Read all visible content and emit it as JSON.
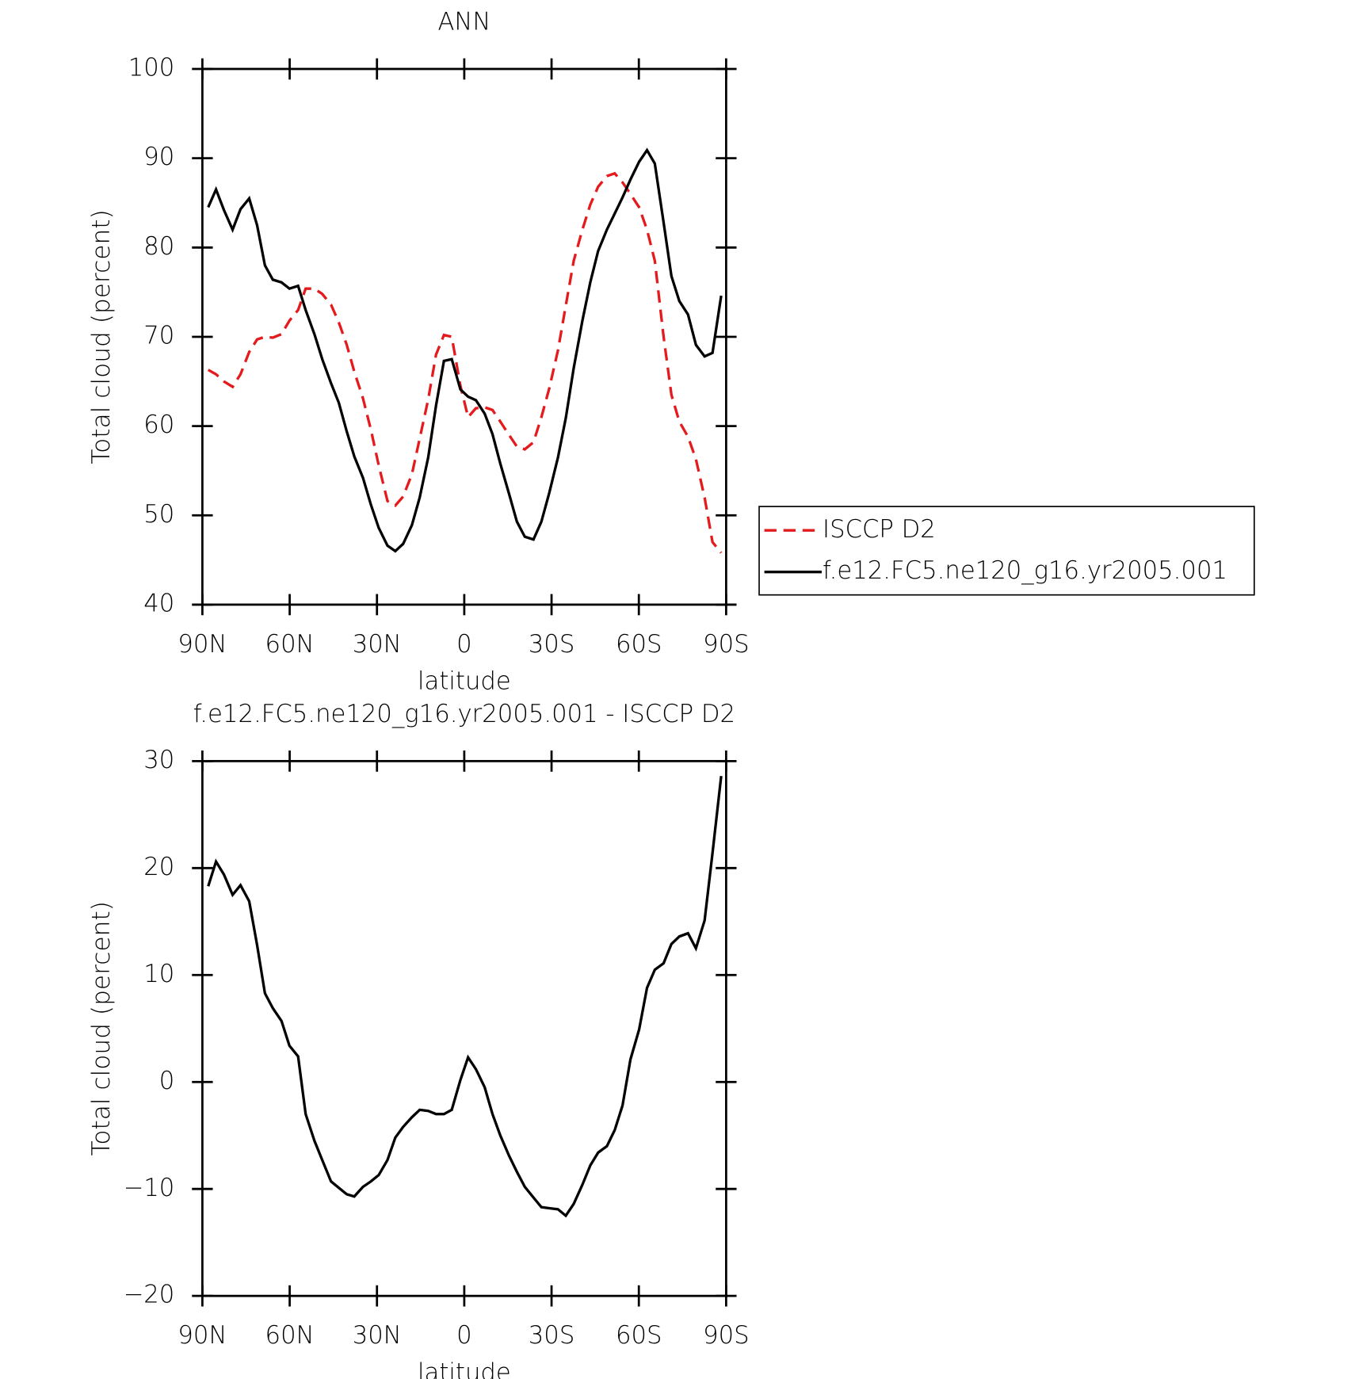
{
  "chart_data": [
    {
      "type": "line",
      "title": "ANN",
      "x_label": "latitude",
      "y_label": "Total cloud (percent)",
      "xlim": [
        90,
        -90
      ],
      "ylim": [
        40,
        100
      ],
      "xticks": [
        {
          "value": 90,
          "label": "90N"
        },
        {
          "value": 60,
          "label": "60N"
        },
        {
          "value": 30,
          "label": "30N"
        },
        0,
        {
          "value": -30,
          "label": "30S"
        },
        {
          "value": -60,
          "label": "60S"
        },
        {
          "value": -90,
          "label": "90S"
        }
      ],
      "yticks": [
        40,
        50,
        60,
        70,
        80,
        90,
        100
      ],
      "legend": "right",
      "x": [
        88,
        85.3,
        82.6,
        79.6,
        76.9,
        73.9,
        71.2,
        68.5,
        65.8,
        62.8,
        60.1,
        57.1,
        54.5,
        51.5,
        48.8,
        45.8,
        43.1,
        40.4,
        37.8,
        34.8,
        32.1,
        29.4,
        26.4,
        23.7,
        21,
        18,
        15.3,
        12.4,
        9.7,
        7,
        4.3,
        1.3,
        -1.3,
        -4,
        -7,
        -9.7,
        -12.4,
        -15.4,
        -18.1,
        -20.8,
        -23.8,
        -26.5,
        -29.2,
        -32.2,
        -34.9,
        -37.6,
        -40.6,
        -43.3,
        -46,
        -49,
        -51.7,
        -54.4,
        -57.1,
        -60.1,
        -62.8,
        -65.5,
        -68.5,
        -71.2,
        -73.9,
        -76.9,
        -79.6,
        -82.6,
        -85.3,
        -88.3
      ],
      "series": [
        {
          "name": "ISCCP D2",
          "color": "#e41a1c",
          "style": "dashed",
          "values": [
            66.3,
            65.8,
            65,
            64.4,
            65.8,
            68.3,
            69.7,
            70,
            69.9,
            70.3,
            71.8,
            73,
            75.4,
            75.4,
            74.8,
            73.6,
            71.6,
            69.1,
            66.1,
            63.1,
            59.6,
            55.6,
            51.6,
            51.1,
            52.1,
            54.6,
            58.6,
            63,
            68,
            70.2,
            70,
            64.5,
            61,
            62,
            62.1,
            61.8,
            60.5,
            59,
            57.7,
            57.4,
            58.2,
            61,
            64.2,
            68.5,
            73.5,
            78.5,
            82,
            84.8,
            86.8,
            88,
            88.3,
            87.3,
            86,
            84.5,
            82,
            78.5,
            70,
            63.5,
            60.5,
            58.8,
            56.3,
            52,
            47,
            45.8
          ]
        },
        {
          "name": "f.e12.FC5.ne120_g16.yr2005.001",
          "color": "#000000",
          "style": "solid",
          "values": [
            84.5,
            86.5,
            84.2,
            82,
            84.3,
            85.5,
            82.5,
            78,
            76.4,
            76.1,
            75.4,
            75.7,
            73,
            70.3,
            67.5,
            64.8,
            62.6,
            59.4,
            56.6,
            54.2,
            51.2,
            48.6,
            46.6,
            46,
            46.8,
            48.9,
            52,
            56.5,
            62.3,
            67.3,
            67.5,
            64.1,
            63.3,
            62.9,
            61.4,
            59.1,
            55.8,
            52.4,
            49.3,
            47.6,
            47.3,
            49.3,
            52.5,
            56.5,
            60.9,
            66.5,
            71.8,
            76.1,
            79.6,
            82,
            83.8,
            85.6,
            87.6,
            89.6,
            90.9,
            89.4,
            82.8,
            76.8,
            74,
            72.5,
            69.1,
            67.8,
            68.2,
            74.6
          ]
        }
      ]
    },
    {
      "type": "line",
      "title": "f.e12.FC5.ne120_g16.yr2005.001 - ISCCP D2",
      "x_label": "latitude",
      "y_label": "Total cloud (percent)",
      "xlim": [
        90,
        -90
      ],
      "ylim": [
        -20,
        30
      ],
      "xticks": [
        {
          "value": 90,
          "label": "90N"
        },
        {
          "value": 60,
          "label": "60N"
        },
        {
          "value": 30,
          "label": "30N"
        },
        0,
        {
          "value": -30,
          "label": "30S"
        },
        {
          "value": -60,
          "label": "60S"
        },
        {
          "value": -90,
          "label": "90S"
        }
      ],
      "yticks": [
        {
          "value": -20,
          "label": "−20"
        },
        {
          "value": -10,
          "label": "−10"
        },
        0,
        10,
        20,
        30
      ],
      "x": [
        88,
        85.3,
        82.6,
        79.6,
        76.9,
        73.9,
        71.2,
        68.5,
        65.8,
        62.8,
        60.1,
        57.1,
        54.5,
        51.5,
        48.8,
        45.8,
        43.1,
        40.4,
        37.8,
        34.8,
        32.1,
        29.4,
        26.4,
        23.7,
        21,
        18,
        15.3,
        12.4,
        9.7,
        7,
        4.3,
        1.3,
        -1.3,
        -4,
        -7,
        -9.7,
        -12.4,
        -15.4,
        -18.1,
        -20.8,
        -23.8,
        -26.5,
        -29.2,
        -32.2,
        -34.9,
        -37.6,
        -40.6,
        -43.3,
        -46,
        -49,
        -51.7,
        -54.4,
        -57.1,
        -60.1,
        -62.8,
        -65.5,
        -68.5,
        -71.2,
        -73.9,
        -76.9,
        -79.6,
        -82.6,
        -85.3,
        -88.3
      ],
      "series": [
        {
          "color": "#000000",
          "style": "solid",
          "values": [
            18.3,
            20.6,
            19.4,
            17.5,
            18.4,
            16.9,
            12.8,
            8.3,
            6.9,
            5.7,
            3.4,
            2.4,
            -3,
            -5.5,
            -7.3,
            -9.3,
            -9.9,
            -10.5,
            -10.7,
            -9.8,
            -9.3,
            -8.7,
            -7.3,
            -5.2,
            -4.2,
            -3.3,
            -2.6,
            -2.7,
            -3,
            -3,
            -2.6,
            0.2,
            2.3,
            1.2,
            -0.5,
            -3,
            -5,
            -6.9,
            -8.4,
            -9.8,
            -10.8,
            -11.7,
            -11.8,
            -11.9,
            -12.5,
            -11.4,
            -9.6,
            -7.8,
            -6.6,
            -6,
            -4.5,
            -2.2,
            2.1,
            4.9,
            8.8,
            10.5,
            11.1,
            12.9,
            13.6,
            13.9,
            12.5,
            15.1,
            21.4,
            28.6
          ]
        }
      ]
    }
  ]
}
